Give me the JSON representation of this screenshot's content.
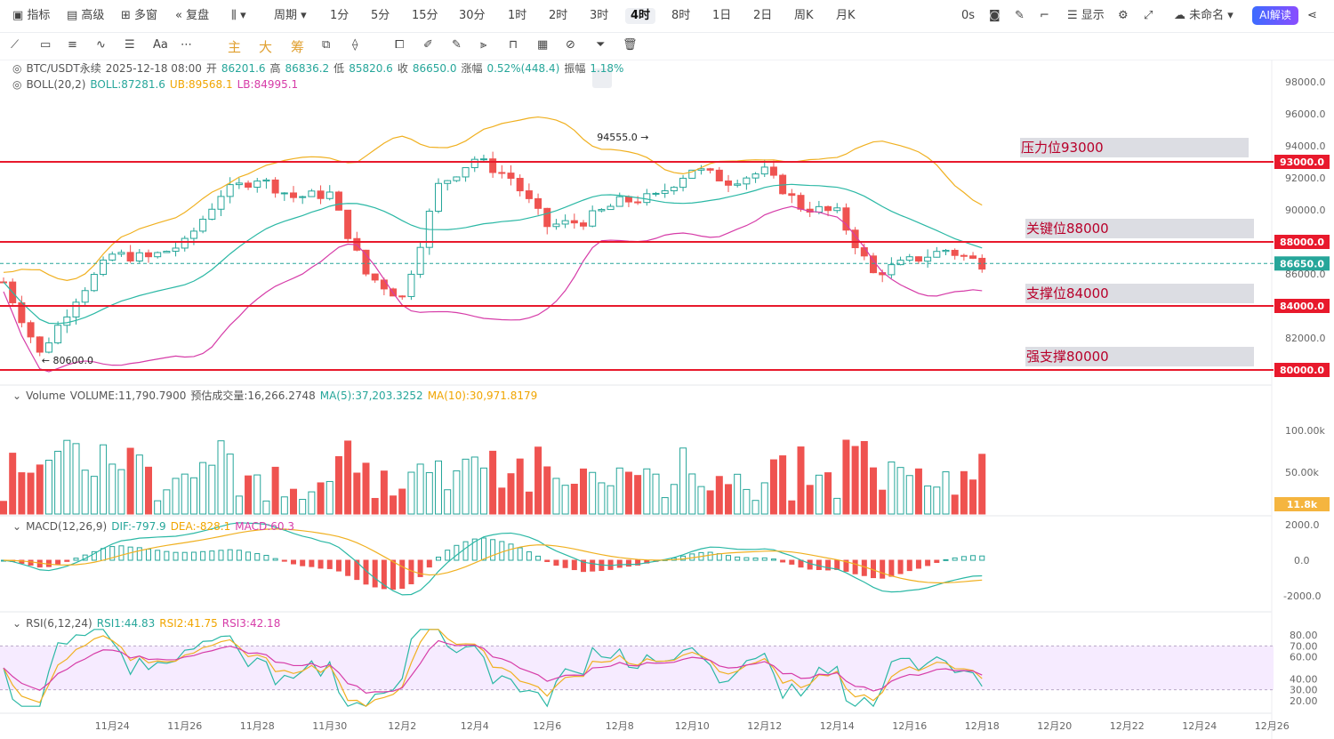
{
  "toolbar": {
    "items": [
      "指标",
      "高级",
      "多窗",
      "复盘",
      "周期",
      "1分",
      "5分",
      "15分",
      "30分",
      "1时",
      "2时",
      "3时",
      "4时",
      "8时",
      "1日",
      "2日",
      "周K",
      "月K"
    ],
    "selected": "4时",
    "right_items": [
      "0s",
      "显示",
      "未命名"
    ],
    "ai_label": "AI解读"
  },
  "drawbar": {
    "labels": [
      "主",
      "大",
      "筹",
      "Aa"
    ]
  },
  "info": {
    "symbol": "BTC/USDT永续",
    "datetime": "2025-12-18 08:00",
    "open_label": "开",
    "open": "86201.6",
    "high_label": "高",
    "high": "86836.2",
    "low_label": "低",
    "low": "85820.6",
    "close_label": "收",
    "close": "86650.0",
    "change_label": "涨幅",
    "change": "0.52%(448.4)",
    "amp_label": "振幅",
    "amp": "1.18%"
  },
  "boll": {
    "name": "BOLL(20,2)",
    "mid": "BOLL:87281.6",
    "ub": "UB:89568.1",
    "lb": "LB:84995.1"
  },
  "volume": {
    "name": "Volume",
    "value": "VOLUME:11,790.7900",
    "est": "预估成交量:16,266.2748",
    "ma5": "MA(5):37,203.3252",
    "ma10": "MA(10):30,971.8179"
  },
  "macd": {
    "name": "MACD(12,26,9)",
    "dif": "DIF:-797.9",
    "dea": "DEA:-828.1",
    "macd": "MACD:60.3"
  },
  "rsi": {
    "name": "RSI(6,12,24)",
    "r1": "RSI1:44.83",
    "r2": "RSI2:41.75",
    "r3": "RSI3:42.18"
  },
  "zones": [
    "压力位93000",
    "关键位88000",
    "支撑位84000",
    "强支撑80000"
  ],
  "chart_data": {
    "type": "candlestick",
    "price_axis": [
      "98000.0",
      "96000.0",
      "94000.0",
      "92000.0",
      "90000.0",
      "88000.0",
      "86000.0",
      "84000.0",
      "82000.0",
      "80000.0"
    ],
    "price_range": [
      79700,
      98600
    ],
    "horizontal_lines": [
      {
        "price": 93000,
        "label": "93000.0"
      },
      {
        "price": 88000,
        "label": "88000.0"
      },
      {
        "price": 84000,
        "label": "84000.0"
      },
      {
        "price": 80000,
        "label": "80000.0"
      }
    ],
    "last_price": {
      "price": 86650,
      "label": "86650.0"
    },
    "annotations": [
      {
        "text": "94555.0",
        "price": 94555,
        "date": "12-09"
      },
      {
        "text": "80600.0",
        "price": 80600,
        "date": "11-22"
      }
    ],
    "x_axis": [
      "11月24",
      "11月26",
      "11月28",
      "11月30",
      "12月2",
      "12月4",
      "12月6",
      "12月8",
      "12月10",
      "12月12",
      "12月14",
      "12月16",
      "12月18",
      "12月20",
      "12月22",
      "12月24",
      "12月26"
    ],
    "volume_axis": [
      "100.00k",
      "50.00k"
    ],
    "volume_last": "11.8k",
    "macd_axis": [
      "2000.0",
      "0.0",
      "-2000.0"
    ],
    "rsi_axis": [
      "80.00",
      "70.00",
      "60.00",
      "40.00",
      "30.00",
      "20.00"
    ],
    "close_points": [
      [
        "11-21",
        85500
      ],
      [
        "11-22",
        81000
      ],
      [
        "11-23",
        84500
      ],
      [
        "11-24",
        87200
      ],
      [
        "11-25",
        87000
      ],
      [
        "11-26",
        87900
      ],
      [
        "11-27",
        91000
      ],
      [
        "11-28",
        92000
      ],
      [
        "11-29",
        90800
      ],
      [
        "11-30",
        91000
      ],
      [
        "12-01",
        86000
      ],
      [
        "12-02",
        84500
      ],
      [
        "12-03",
        91500
      ],
      [
        "12-04",
        93200
      ],
      [
        "12-05",
        92000
      ],
      [
        "12-06",
        89000
      ],
      [
        "12-07",
        89300
      ],
      [
        "12-08",
        90500
      ],
      [
        "12-09",
        90800
      ],
      [
        "12-10",
        92600
      ],
      [
        "12-11",
        91800
      ],
      [
        "12-12",
        92400
      ],
      [
        "12-13",
        90200
      ],
      [
        "12-14",
        89800
      ],
      [
        "12-15",
        86000
      ],
      [
        "12-16",
        86800
      ],
      [
        "12-17",
        87500
      ],
      [
        "12-18",
        86650
      ]
    ]
  }
}
